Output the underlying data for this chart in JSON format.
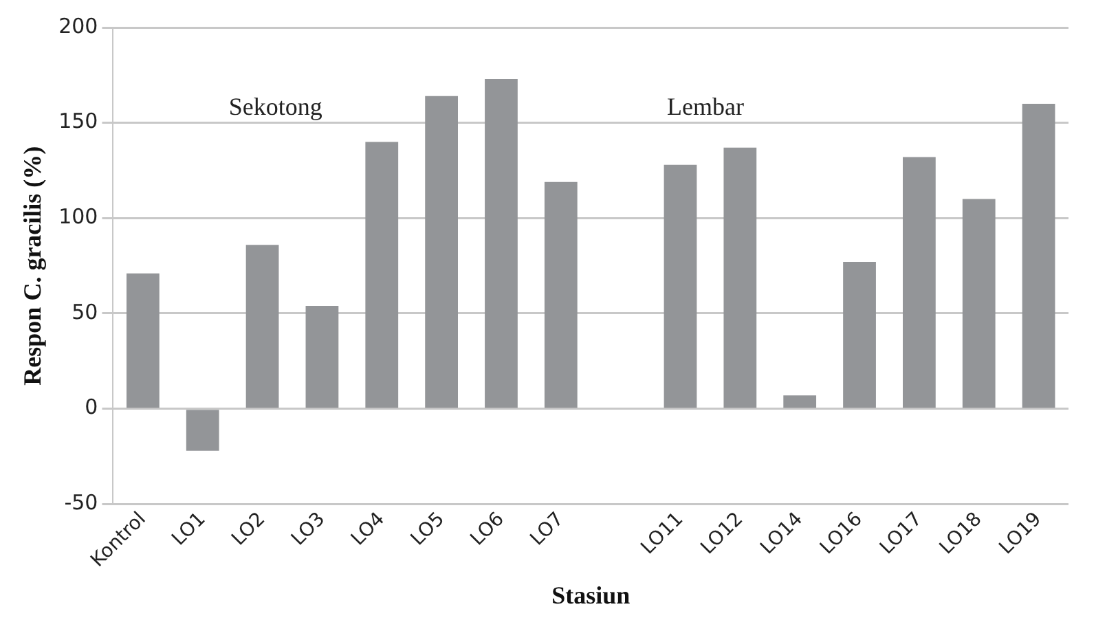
{
  "chart_data": {
    "type": "bar",
    "xlabel": "Stasiun",
    "ylabel": "Respon C. gracilis (%)",
    "categories": [
      "Kontrol",
      "LO1",
      "LO2",
      "LO3",
      "LO4",
      "LO5",
      "LO6",
      "LO7",
      null,
      "LO11",
      "LO12",
      "LO14",
      "LO16",
      "LO17",
      "LO18",
      "LO19"
    ],
    "values": [
      71,
      -22,
      86,
      54,
      140,
      164,
      173,
      119,
      null,
      128,
      137,
      7,
      77,
      132,
      110,
      160
    ],
    "color": "#939598",
    "ylim": [
      -50,
      200
    ],
    "yticks": [
      -50,
      0,
      50,
      100,
      150,
      200
    ],
    "grid": "y",
    "annotations": [
      "Sekotong",
      "Lembar"
    ]
  }
}
